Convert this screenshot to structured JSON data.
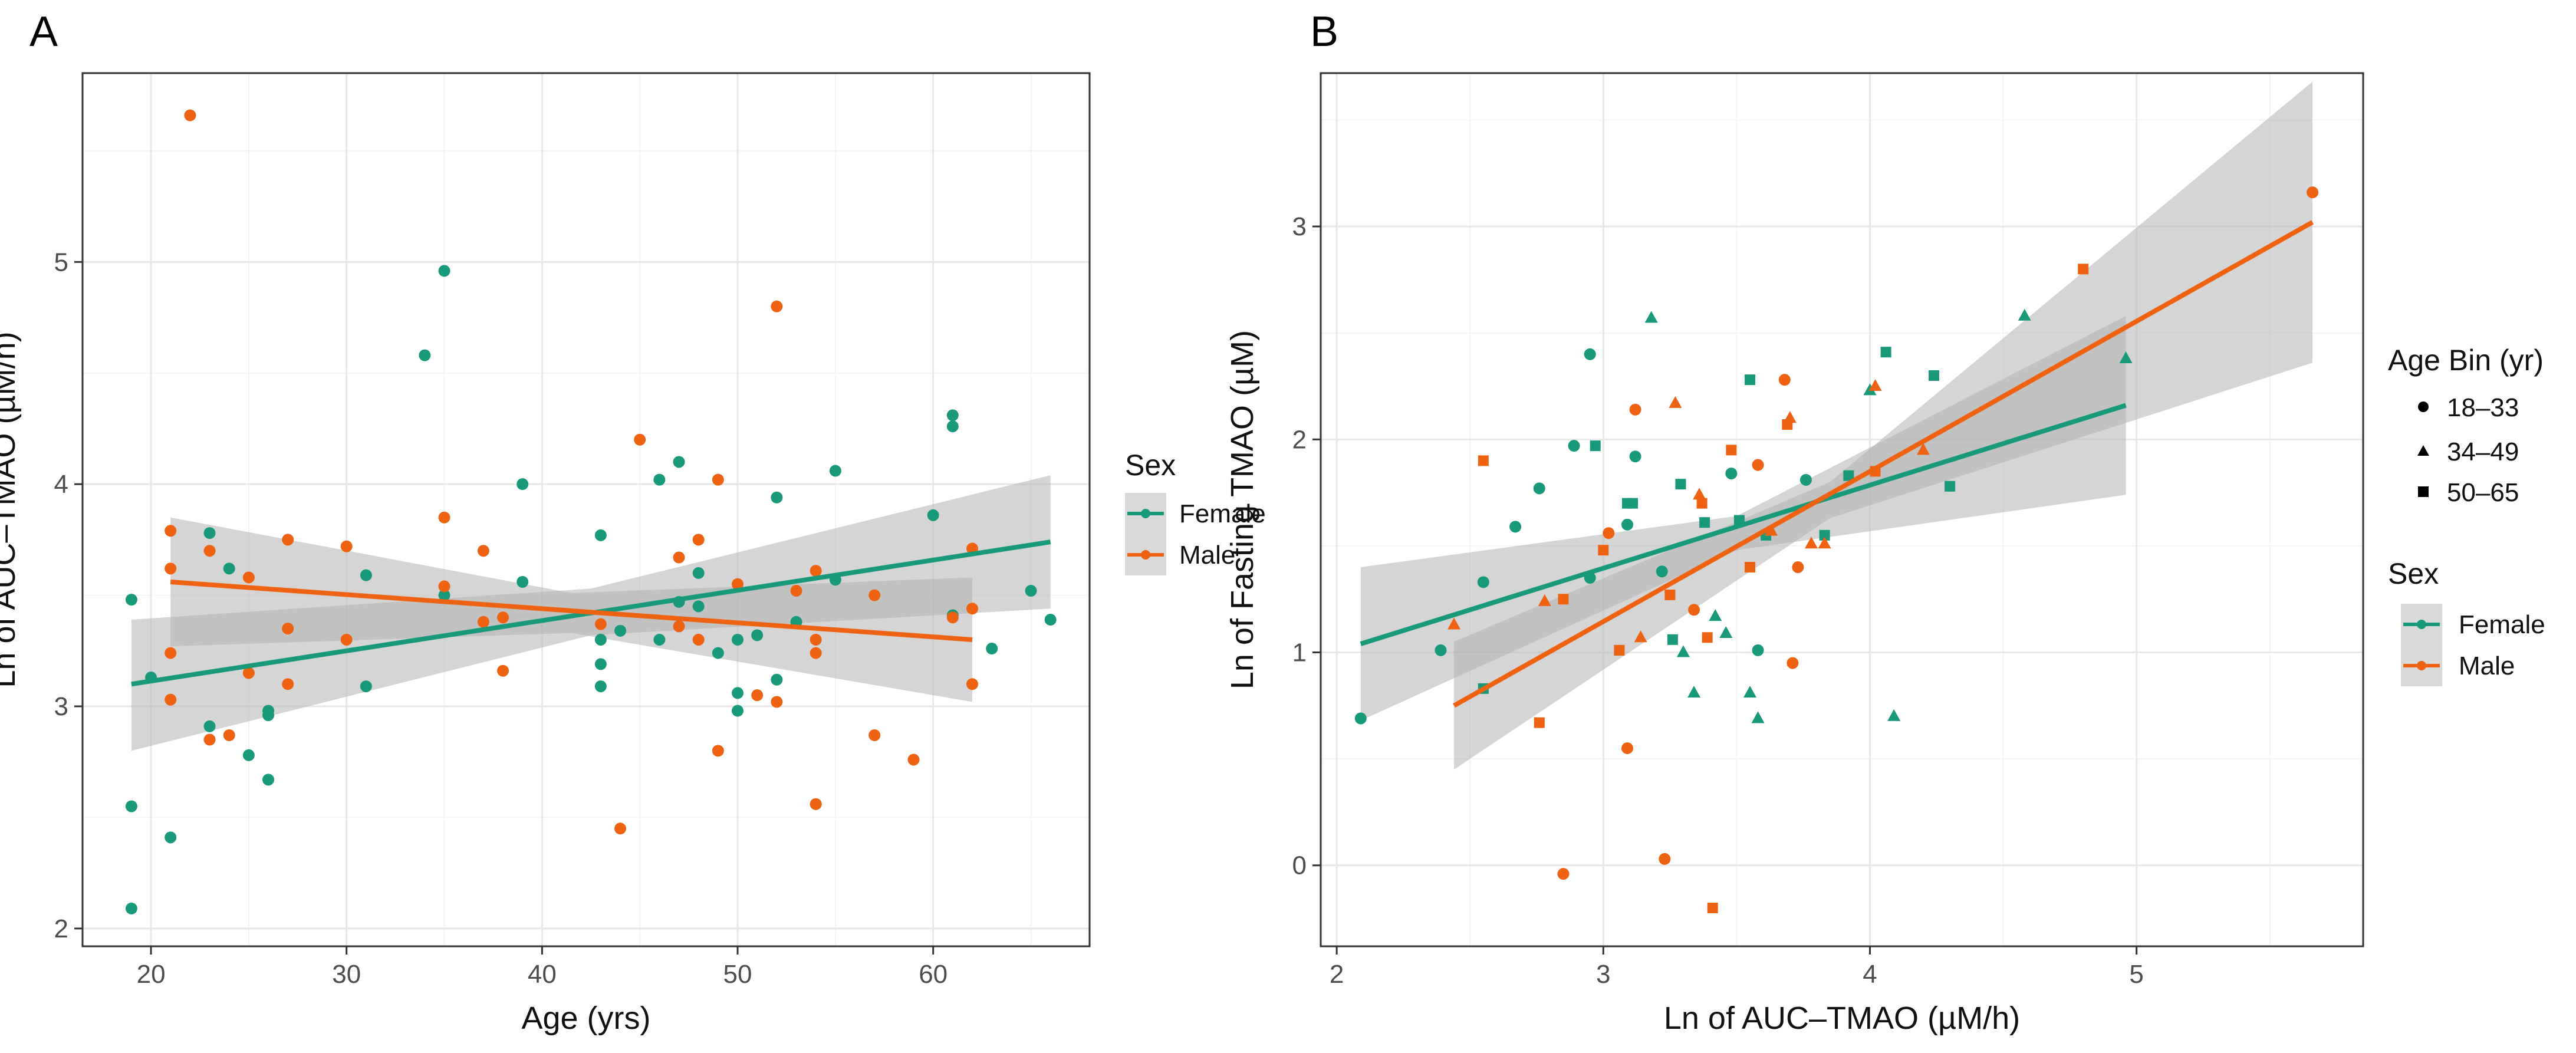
{
  "colors": {
    "Female": "#17997a",
    "Male": "#ee6212",
    "band": "#b3b3b3"
  },
  "legend": {
    "sex_title": "Sex",
    "sex_items": [
      "Female",
      "Male"
    ],
    "age_title": "Age Bin (yr)",
    "age_items": [
      {
        "label": "18–33",
        "shape": "circle"
      },
      {
        "label": "34–49",
        "shape": "triangle"
      },
      {
        "label": "50–65",
        "shape": "square"
      }
    ]
  },
  "chart_data": [
    {
      "panel": "A",
      "type": "scatter",
      "xlabel": "Age (yrs)",
      "ylabel": "Ln of AUC–TMAO (µM/h)",
      "xlim": [
        16.5,
        68
      ],
      "ylim": [
        1.92,
        5.85
      ],
      "xticks": [
        20,
        30,
        40,
        50,
        60
      ],
      "yticks": [
        2,
        3,
        4,
        5
      ],
      "series": [
        {
          "name": "Female",
          "points": [
            [
              19,
              2.09
            ],
            [
              19,
              2.55
            ],
            [
              19,
              3.48
            ],
            [
              20,
              3.13
            ],
            [
              21,
              2.41
            ],
            [
              23,
              3.78
            ],
            [
              23,
              2.91
            ],
            [
              24,
              3.62
            ],
            [
              25,
              2.78
            ],
            [
              26,
              2.67
            ],
            [
              26,
              2.96
            ],
            [
              26,
              2.98
            ],
            [
              31,
              3.59
            ],
            [
              31,
              3.09
            ],
            [
              34,
              4.58
            ],
            [
              35,
              4.96
            ],
            [
              35,
              3.5
            ],
            [
              39,
              4.0
            ],
            [
              39,
              3.56
            ],
            [
              43,
              3.77
            ],
            [
              43,
              3.3
            ],
            [
              43,
              3.19
            ],
            [
              43,
              3.09
            ],
            [
              44,
              3.34
            ],
            [
              46,
              4.02
            ],
            [
              46,
              3.3
            ],
            [
              47,
              4.1
            ],
            [
              47,
              3.47
            ],
            [
              48,
              3.6
            ],
            [
              48,
              3.45
            ],
            [
              49,
              3.24
            ],
            [
              50,
              3.3
            ],
            [
              50,
              3.06
            ],
            [
              50,
              2.98
            ],
            [
              51,
              3.32
            ],
            [
              52,
              3.94
            ],
            [
              52,
              3.12
            ],
            [
              53,
              3.38
            ],
            [
              54,
              2.56
            ],
            [
              55,
              3.57
            ],
            [
              55,
              4.06
            ],
            [
              60,
              3.86
            ],
            [
              61,
              4.31
            ],
            [
              61,
              4.26
            ],
            [
              61,
              3.41
            ],
            [
              63,
              3.26
            ],
            [
              65,
              3.52
            ],
            [
              66,
              3.39
            ]
          ],
          "fit": {
            "x": [
              19,
              66
            ],
            "y": [
              3.1,
              3.74
            ]
          },
          "ci": {
            "x": [
              19,
              42.5,
              66
            ],
            "lower": [
              2.8,
              3.32,
              3.44
            ],
            "upper": [
              3.39,
              3.53,
              4.04
            ]
          }
        },
        {
          "name": "Male",
          "points": [
            [
              21,
              3.79
            ],
            [
              21,
              3.62
            ],
            [
              21,
              3.24
            ],
            [
              21,
              3.03
            ],
            [
              22,
              5.66
            ],
            [
              23,
              3.7
            ],
            [
              23,
              2.85
            ],
            [
              24,
              2.87
            ],
            [
              25,
              3.58
            ],
            [
              25,
              3.15
            ],
            [
              27,
              3.75
            ],
            [
              27,
              3.35
            ],
            [
              27,
              3.1
            ],
            [
              30,
              3.72
            ],
            [
              30,
              3.3
            ],
            [
              35,
              3.85
            ],
            [
              35,
              3.54
            ],
            [
              37,
              3.7
            ],
            [
              37,
              3.38
            ],
            [
              38,
              3.4
            ],
            [
              38,
              3.16
            ],
            [
              43,
              3.37
            ],
            [
              44,
              2.45
            ],
            [
              45,
              4.2
            ],
            [
              47,
              3.67
            ],
            [
              47,
              3.36
            ],
            [
              48,
              3.75
            ],
            [
              48,
              3.3
            ],
            [
              49,
              4.02
            ],
            [
              49,
              2.8
            ],
            [
              50,
              3.55
            ],
            [
              51,
              3.05
            ],
            [
              52,
              4.8
            ],
            [
              52,
              3.02
            ],
            [
              53,
              3.52
            ],
            [
              54,
              3.61
            ],
            [
              54,
              3.3
            ],
            [
              54,
              3.24
            ],
            [
              54,
              2.56
            ],
            [
              57,
              3.5
            ],
            [
              57,
              2.87
            ],
            [
              59,
              2.76
            ],
            [
              61,
              3.4
            ],
            [
              62,
              3.71
            ],
            [
              62,
              3.44
            ],
            [
              62,
              3.1
            ]
          ],
          "fit": {
            "x": [
              21,
              62
            ],
            "y": [
              3.56,
              3.3
            ]
          },
          "ci": {
            "x": [
              21,
              41.5,
              62
            ],
            "lower": [
              3.27,
              3.33,
              3.02
            ],
            "upper": [
              3.85,
              3.51,
              3.58
            ]
          }
        }
      ]
    },
    {
      "panel": "B",
      "type": "scatter",
      "xlabel": "Ln of AUC–TMAO (µM/h)",
      "ylabel": "Ln of Fasting TMAO (µM)",
      "xlim": [
        1.94,
        5.85
      ],
      "ylim": [
        -0.38,
        3.72
      ],
      "xticks": [
        2,
        3,
        4,
        5
      ],
      "yticks": [
        0,
        1,
        2,
        3
      ],
      "series": [
        {
          "name": "Female",
          "points": [
            [
              2.09,
              0.69,
              "c"
            ],
            [
              2.39,
              1.01,
              "c"
            ],
            [
              2.55,
              1.33,
              "c"
            ],
            [
              2.55,
              0.83,
              "s"
            ],
            [
              2.67,
              1.59,
              "c"
            ],
            [
              2.76,
              1.77,
              "c"
            ],
            [
              2.89,
              1.97,
              "c"
            ],
            [
              2.95,
              2.4,
              "c"
            ],
            [
              2.95,
              1.35,
              "c"
            ],
            [
              2.97,
              1.97,
              "s"
            ],
            [
              3.06,
              1.01,
              "s"
            ],
            [
              3.09,
              1.6,
              "c"
            ],
            [
              3.09,
              1.7,
              "s"
            ],
            [
              3.11,
              1.7,
              "s"
            ],
            [
              3.12,
              1.92,
              "c"
            ],
            [
              3.18,
              2.57,
              "t"
            ],
            [
              3.22,
              1.38,
              "c"
            ],
            [
              3.26,
              1.06,
              "s"
            ],
            [
              3.29,
              1.79,
              "s"
            ],
            [
              3.3,
              1.0,
              "t"
            ],
            [
              3.34,
              0.81,
              "t"
            ],
            [
              3.38,
              1.61,
              "s"
            ],
            [
              3.42,
              1.17,
              "t"
            ],
            [
              3.46,
              1.09,
              "t"
            ],
            [
              3.48,
              1.84,
              "c"
            ],
            [
              3.51,
              1.62,
              "s"
            ],
            [
              3.55,
              2.28,
              "s"
            ],
            [
              3.55,
              0.81,
              "t"
            ],
            [
              3.58,
              0.69,
              "t"
            ],
            [
              3.58,
              1.01,
              "c"
            ],
            [
              3.61,
              1.55,
              "s"
            ],
            [
              3.76,
              1.81,
              "c"
            ],
            [
              3.83,
              1.55,
              "s"
            ],
            [
              3.92,
              1.83,
              "s"
            ],
            [
              4.0,
              2.23,
              "t"
            ],
            [
              4.06,
              2.41,
              "s"
            ],
            [
              4.09,
              0.7,
              "t"
            ],
            [
              4.24,
              2.3,
              "s"
            ],
            [
              4.3,
              1.78,
              "s"
            ],
            [
              4.58,
              2.58,
              "t"
            ],
            [
              4.96,
              2.38,
              "t"
            ]
          ],
          "fit": {
            "x": [
              2.09,
              4.96
            ],
            "y": [
              1.04,
              2.16
            ]
          },
          "ci": {
            "x": [
              2.09,
              3.5,
              4.96
            ],
            "lower": [
              0.68,
              1.48,
              1.74
            ],
            "upper": [
              1.4,
              1.64,
              2.58
            ]
          }
        },
        {
          "name": "Male",
          "points": [
            [
              2.44,
              1.13,
              "t"
            ],
            [
              2.55,
              1.9,
              "s"
            ],
            [
              2.76,
              0.67,
              "s"
            ],
            [
              2.78,
              1.24,
              "t"
            ],
            [
              2.85,
              -0.04,
              "c"
            ],
            [
              2.85,
              1.25,
              "s"
            ],
            [
              3.0,
              1.48,
              "s"
            ],
            [
              3.02,
              1.56,
              "c"
            ],
            [
              3.06,
              1.01,
              "s"
            ],
            [
              3.09,
              0.55,
              "c"
            ],
            [
              3.12,
              2.14,
              "c"
            ],
            [
              3.14,
              1.07,
              "t"
            ],
            [
              3.23,
              0.03,
              "c"
            ],
            [
              3.25,
              1.27,
              "s"
            ],
            [
              3.27,
              2.17,
              "t"
            ],
            [
              3.34,
              1.2,
              "c"
            ],
            [
              3.36,
              1.74,
              "t"
            ],
            [
              3.37,
              1.7,
              "s"
            ],
            [
              3.39,
              1.07,
              "s"
            ],
            [
              3.41,
              -0.2,
              "s"
            ],
            [
              3.48,
              1.95,
              "s"
            ],
            [
              3.55,
              1.4,
              "s"
            ],
            [
              3.58,
              1.88,
              "c"
            ],
            [
              3.63,
              1.57,
              "t"
            ],
            [
              3.68,
              2.28,
              "c"
            ],
            [
              3.69,
              2.07,
              "s"
            ],
            [
              3.7,
              2.1,
              "t"
            ],
            [
              3.71,
              0.95,
              "c"
            ],
            [
              3.73,
              1.4,
              "c"
            ],
            [
              3.78,
              1.51,
              "t"
            ],
            [
              3.83,
              1.51,
              "t"
            ],
            [
              4.02,
              1.85,
              "s"
            ],
            [
              4.02,
              2.25,
              "t"
            ],
            [
              4.2,
              1.95,
              "t"
            ],
            [
              4.8,
              2.8,
              "s"
            ],
            [
              5.66,
              3.16,
              "c"
            ]
          ],
          "fit": {
            "x": [
              2.44,
              5.66
            ],
            "y": [
              0.75,
              3.02
            ]
          },
          "ci": {
            "x": [
              2.44,
              3.85,
              5.66
            ],
            "lower": [
              0.45,
              1.63,
              2.36
            ],
            "upper": [
              1.05,
              1.8,
              3.68
            ]
          }
        }
      ]
    }
  ]
}
